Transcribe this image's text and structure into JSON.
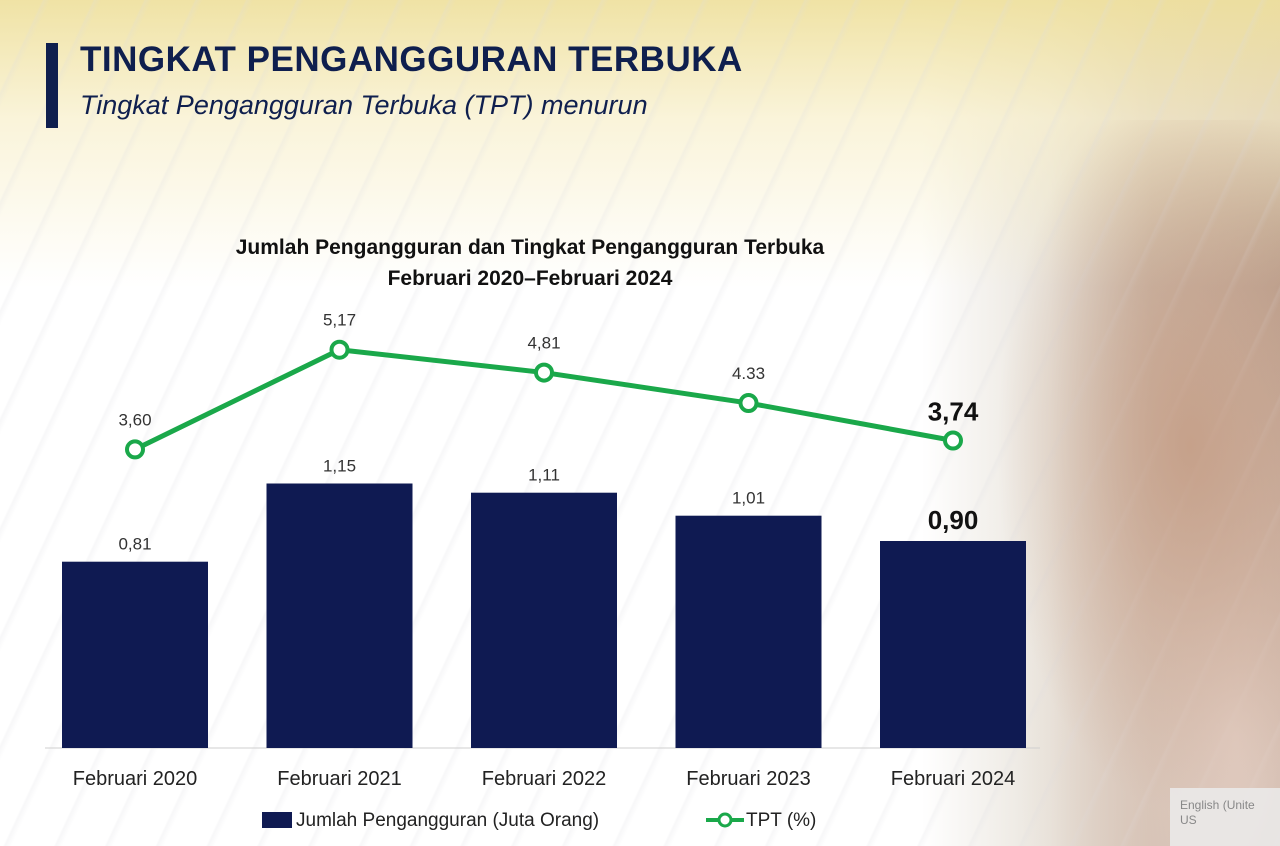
{
  "header": {
    "title": "TINGKAT PENGANGGURAN TERBUKA",
    "subtitle": "Tingkat Pengangguran Terbuka (TPT) menurun"
  },
  "chart_data": {
    "type": "bar",
    "title_line1": "Jumlah Pengangguran dan Tingkat Pengangguran Terbuka",
    "title_line2": "Februari 2020–Februari 2024",
    "categories": [
      "Februari 2020",
      "Februari 2021",
      "Februari 2022",
      "Februari 2023",
      "Februari 2024"
    ],
    "series": [
      {
        "name": "Jumlah Pengangguran (Juta Orang)",
        "type": "bar",
        "color": "#0f1a52",
        "values": [
          0.81,
          1.15,
          1.11,
          1.01,
          0.9
        ],
        "labels": [
          "0,81",
          "1,15",
          "1,11",
          "1,01",
          "0,90"
        ]
      },
      {
        "name": "TPT (%)",
        "type": "line",
        "color": "#1aa84a",
        "values": [
          3.6,
          5.17,
          4.81,
          4.33,
          3.74
        ],
        "labels": [
          "3,60",
          "5,17",
          "4,81",
          "4.33",
          "3,74"
        ]
      }
    ],
    "emphasis_last": true,
    "legend_position": "bottom",
    "grid": false
  },
  "overlay": {
    "language_line1": "English (Unite",
    "language_line2": "US"
  }
}
